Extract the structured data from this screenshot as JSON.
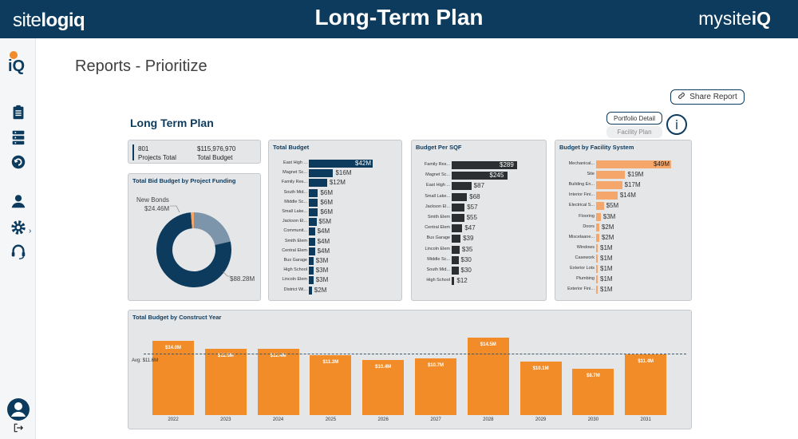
{
  "header": {
    "brand_left_light": "site",
    "brand_left_bold": "logiq",
    "title": "Long-Term Plan",
    "brand_right_light": "mysite",
    "brand_right_bold": "iQ"
  },
  "sidebar": {
    "logo": "iQ",
    "icons": [
      "clipboard-icon",
      "server-icon",
      "cycle-icon",
      "user-icon",
      "gear-icon",
      "headset-icon",
      "profile-icon",
      "logout-icon"
    ]
  },
  "page": {
    "title": "Reports - Prioritize"
  },
  "toolbar": {
    "share_label": "Share Report",
    "portfolio_label": "Portfolio Detail",
    "facility_label": "Facility Plan",
    "info_label": "i"
  },
  "report": {
    "title": "Long Term Plan"
  },
  "kpi": {
    "projects_value": "801",
    "projects_label": "Projects Total",
    "budget_value": "$115,976,970",
    "budget_label": "Total Budget"
  },
  "colors": {
    "navy": "#0d3b5e",
    "slate": "#7d95aa",
    "dark": "#2b2f31",
    "peach": "#f5a66a",
    "orange": "#f28c28"
  },
  "chart_data": [
    {
      "type": "pie",
      "title": "Total Bid Budget by Project Funding",
      "slices": [
        {
          "name": "New Bonds",
          "value": 24.46,
          "label": "$24.46M"
        },
        {
          "name": "",
          "value": 88.28,
          "label": "$88.28M"
        },
        {
          "name": "",
          "value": 1.5,
          "label": ""
        }
      ],
      "new_bonds_label": "New Bonds"
    },
    {
      "type": "bar",
      "title": "Total Budget",
      "categories": [
        "East High ...",
        "Magnet Sc...",
        "Family Res...",
        "South Mid...",
        "Middle Sc...",
        "Small Lake...",
        "Jackson El...",
        "Communit...",
        "Smith Elem",
        "Central Elem",
        "Bus Garage",
        "High School",
        "Lincoln Elem",
        "District Wi..."
      ],
      "values": [
        42,
        16,
        12,
        6,
        6,
        6,
        5,
        4,
        4,
        4,
        3,
        3,
        3,
        2
      ],
      "labels": [
        "$42M",
        "$16M",
        "$12M",
        "$6M",
        "$6M",
        "$6M",
        "$5M",
        "$4M",
        "$4M",
        "$4M",
        "$3M",
        "$3M",
        "$3M",
        "$2M"
      ]
    },
    {
      "type": "bar",
      "title": "Budget Per SQF",
      "categories": [
        "Family Res...",
        "Magnet Sc...",
        "East High ...",
        "Small Lake...",
        "Jackson El...",
        "Smith Elem",
        "Central Elem",
        "Bus Garage",
        "Lincoln Elem",
        "Middle Sc...",
        "South Mid...",
        "High School"
      ],
      "values": [
        289,
        245,
        87,
        68,
        57,
        55,
        47,
        39,
        35,
        30,
        30,
        12
      ],
      "labels": [
        "$289",
        "$245",
        "$87",
        "$68",
        "$57",
        "$55",
        "$47",
        "$39",
        "$35",
        "$30",
        "$30",
        "$12"
      ]
    },
    {
      "type": "bar",
      "title": "Budget by Facility System",
      "categories": [
        "Mechanical...",
        "Site",
        "Building En...",
        "Interior Fini...",
        "Electrical S...",
        "Flooring",
        "Doors",
        "Miscelaane...",
        "Windows",
        "Casework",
        "Exterior Lots",
        "Plumbing",
        "Exterior Fini..."
      ],
      "values": [
        49,
        19,
        17,
        14,
        5,
        3,
        2,
        2,
        1,
        1,
        1,
        1,
        1
      ],
      "labels": [
        "$49M",
        "$19M",
        "$17M",
        "$14M",
        "$5M",
        "$3M",
        "$2M",
        "$2M",
        "$1M",
        "$1M",
        "$1M",
        "$1M",
        "$1M"
      ]
    },
    {
      "type": "bar",
      "title": "Total Budget by Construct Year",
      "categories": [
        "2022",
        "2023",
        "2024",
        "2025",
        "2026",
        "2027",
        "2028",
        "2029",
        "2030",
        "2031"
      ],
      "values": [
        14.0,
        12.5,
        12.4,
        11.3,
        10.4,
        10.7,
        14.5,
        10.1,
        8.7,
        11.4
      ],
      "labels": [
        "$14.0M",
        "$12.5M",
        "$12.4M",
        "$11.3M",
        "$10.4M",
        "$10.7M",
        "$14.5M",
        "$10.1M",
        "$8.7M",
        "$11.4M"
      ],
      "avg_label": "Avg: $11.6M",
      "avg": 11.6
    }
  ]
}
